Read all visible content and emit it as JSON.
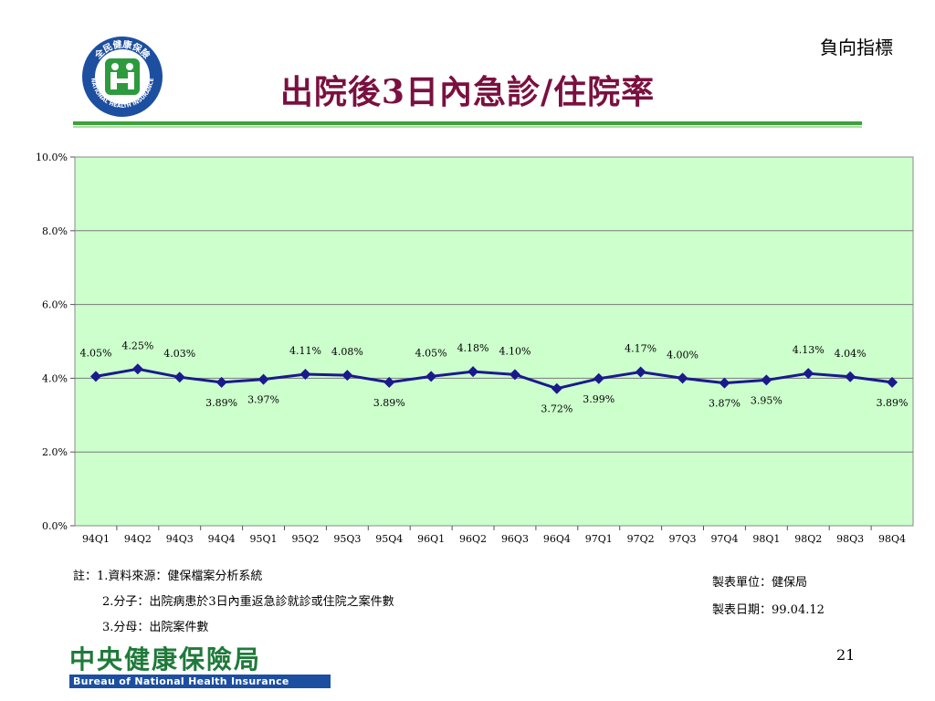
{
  "header": {
    "title": "出院後3日內急診/住院率",
    "tag": "負向指標"
  },
  "colors": {
    "title": "#7a1040",
    "plot_bg": "#ccffcc",
    "line": "#1a1a8c",
    "rule": "#3aa33a"
  },
  "chart_data": {
    "type": "line",
    "categories": [
      "94Q1",
      "94Q2",
      "94Q3",
      "94Q4",
      "95Q1",
      "95Q2",
      "95Q3",
      "95Q4",
      "96Q1",
      "96Q2",
      "96Q3",
      "96Q4",
      "97Q1",
      "97Q2",
      "97Q3",
      "97Q4",
      "98Q1",
      "98Q2",
      "98Q3",
      "98Q4"
    ],
    "series": [
      {
        "values": [
          4.05,
          4.25,
          4.03,
          3.89,
          3.97,
          4.11,
          4.08,
          3.89,
          4.05,
          4.18,
          4.1,
          3.72,
          3.99,
          4.17,
          4.0,
          3.87,
          3.95,
          4.13,
          4.04,
          3.89
        ],
        "labels": [
          "4.05%",
          "4.25%",
          "4.03%",
          "3.89%",
          "3.97%",
          "4.11%",
          "4.08%",
          "3.89%",
          "4.05%",
          "4.18%",
          "4.10%",
          "3.72%",
          "3.99%",
          "4.17%",
          "4.00%",
          "3.87%",
          "3.95%",
          "4.13%",
          "4.04%",
          "3.89%"
        ],
        "label_pos": [
          "above",
          "above",
          "above",
          "below",
          "below",
          "above",
          "above",
          "below",
          "above",
          "above",
          "above",
          "below",
          "below",
          "above",
          "above",
          "below",
          "below",
          "above",
          "above",
          "below"
        ]
      }
    ],
    "ylim": [
      0,
      10
    ],
    "yticks": [
      0,
      2,
      4,
      6,
      8,
      10
    ],
    "ytick_labels": [
      "0.0%",
      "2.0%",
      "4.0%",
      "6.0%",
      "8.0%",
      "10.0%"
    ],
    "grid": true,
    "marker": "diamond"
  },
  "notes": {
    "line1": "註：1.資料來源：健保檔案分析系統",
    "line2": "2.分子：出院病患於3日內重返急診就診或住院之案件數",
    "line3": "3.分母：出院案件數"
  },
  "meta": {
    "unit": "製表單位：健保局",
    "date": "製表日期：99.04.12"
  },
  "page_number": "21",
  "logo": {
    "ring_text": "全民健康保險",
    "ring_text_en": "NATIONAL HEALTH INSURANCE",
    "icon": "nhi-logo-icon"
  },
  "bureau": {
    "name_cn": "中央健康保險局",
    "name_en": "Bureau of National Health Insurance"
  }
}
